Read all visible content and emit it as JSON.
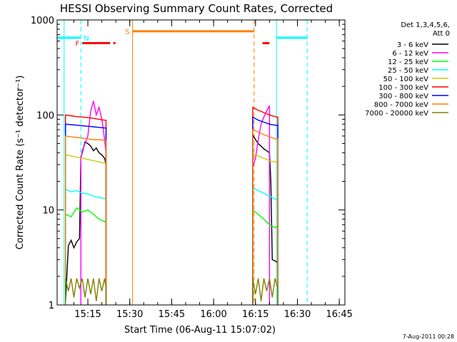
{
  "chart_data": {
    "type": "line",
    "title": "HESSI Observing Summary Count Rates, Corrected",
    "xlabel": "Start Time (06-Aug-11 15:07:02)",
    "ylabel": "Corrected Count Rate (s⁻¹ detector⁻¹)",
    "yscale": "log",
    "ylim": [
      1,
      1000
    ],
    "xlim_minutes": [
      -3.0,
      100.0
    ],
    "x_ticks": [
      {
        "label": "15:15",
        "min": 8
      },
      {
        "label": "15:30",
        "min": 23
      },
      {
        "label": "15:45",
        "min": 38
      },
      {
        "label": "16:00",
        "min": 53
      },
      {
        "label": "16:15",
        "min": 68
      },
      {
        "label": "16:30",
        "min": 83
      },
      {
        "label": "16:45",
        "min": 98
      }
    ],
    "y_ticks": [
      {
        "label": "1",
        "value": 1
      },
      {
        "label": "10",
        "value": 10
      },
      {
        "label": "100",
        "value": 100
      },
      {
        "label": "1000",
        "value": 1000
      }
    ],
    "legend_header": [
      "Det 1,3,4,5,6,",
      "Att 0"
    ],
    "legend_position": "right",
    "series": [
      {
        "name": "3 - 6 keV",
        "color": "#000000",
        "segments": [
          {
            "x": [
              0,
              1,
              2,
              3,
              4,
              5,
              5.5,
              6,
              7,
              8,
              9,
              10,
              11,
              12,
              13,
              14,
              14.5
            ],
            "y": [
              1.05,
              4.2,
              4.8,
              4.0,
              4.6,
              5.0,
              36,
              40,
              52,
              50,
              47,
              42,
              45,
              40,
              38,
              35,
              30
            ]
          },
          {
            "x": [
              67,
              68,
              69,
              70,
              71,
              72,
              73,
              73.5,
              74,
              75,
              76
            ],
            "y": [
              62,
              55,
              50,
              47,
              44,
              42,
              40,
              20,
              3.0,
              2.9,
              2.8
            ]
          }
        ]
      },
      {
        "name": "6 - 12 keV",
        "color": "#ff00ff",
        "segments": [
          {
            "x": [
              5.5,
              6,
              7,
              8,
              9,
              10,
              11,
              12,
              13,
              14,
              14.5
            ],
            "y": [
              34,
              42,
              50,
              60,
              110,
              140,
              100,
              120,
              90,
              55,
              40
            ]
          },
          {
            "x": [
              67,
              68,
              69,
              70,
              71,
              72,
              73
            ],
            "y": [
              28,
              35,
              55,
              80,
              95,
              110,
              125
            ]
          }
        ]
      },
      {
        "name": "12 - 25 keV",
        "color": "#00ff00",
        "segments": [
          {
            "x": [
              0,
              2,
              4,
              6,
              8,
              10,
              12,
              14,
              14.5
            ],
            "y": [
              9.0,
              8.5,
              10.5,
              9.5,
              10.0,
              9.0,
              8.0,
              7.5,
              7.8
            ]
          },
          {
            "x": [
              67,
              69,
              71,
              73,
              75,
              76
            ],
            "y": [
              10,
              9,
              8,
              7,
              6.5,
              6.8
            ]
          }
        ]
      },
      {
        "name": "25 - 50 keV",
        "color": "#00ffff",
        "segments": [
          {
            "x": [
              0,
              2,
              4,
              6,
              8,
              10,
              12,
              14,
              14.5
            ],
            "y": [
              16.5,
              15.5,
              16,
              15,
              14.8,
              14,
              13.5,
              13.2,
              13
            ]
          },
          {
            "x": [
              67,
              69,
              71,
              73,
              75,
              76
            ],
            "y": [
              17,
              16,
              15,
              14,
              13,
              13
            ]
          }
        ]
      },
      {
        "name": "50 - 100 keV",
        "color": "#cccc00",
        "segments": [
          {
            "x": [
              0,
              2,
              4,
              6,
              8,
              10,
              12,
              14,
              14.5
            ],
            "y": [
              38,
              37,
              36,
              35,
              34,
              33,
              32,
              31,
              31
            ]
          },
          {
            "x": [
              67,
              69,
              71,
              73,
              75,
              76
            ],
            "y": [
              38,
              37,
              35,
              33,
              32,
              32
            ]
          }
        ]
      },
      {
        "name": "100 - 300 keV",
        "color": "#ff0000",
        "segments": [
          {
            "x": [
              0,
              2,
              4,
              6,
              8,
              10,
              12,
              14,
              14.5
            ],
            "y": [
              100,
              98,
              96,
              95,
              94,
              92,
              90,
              88,
              88
            ]
          },
          {
            "x": [
              67,
              69,
              71,
              73,
              75,
              76
            ],
            "y": [
              120,
              112,
              106,
              100,
              96,
              95
            ]
          }
        ]
      },
      {
        "name": "300 - 800 keV",
        "color": "#0000ff",
        "segments": [
          {
            "x": [
              0,
              2,
              4,
              6,
              8,
              10,
              12,
              14,
              14.5
            ],
            "y": [
              80,
              79,
              78,
              77,
              76,
              75,
              74,
              73,
              73
            ]
          },
          {
            "x": [
              67,
              69,
              71,
              73,
              75,
              76
            ],
            "y": [
              95,
              88,
              84,
              80,
              78,
              78
            ]
          }
        ]
      },
      {
        "name": "800 - 7000 keV",
        "color": "#ff8000",
        "segments": [
          {
            "x": [
              0,
              2,
              4,
              6,
              8,
              10,
              12,
              14,
              14.5
            ],
            "y": [
              60,
              59,
              58,
              57,
              56,
              55,
              55,
              54,
              54
            ]
          },
          {
            "x": [
              67,
              69,
              71,
              73,
              75,
              76
            ],
            "y": [
              70,
              66,
              62,
              59,
              56,
              56
            ]
          }
        ]
      },
      {
        "name": "7000 - 20000 keV",
        "color": "#808000",
        "segments": [
          {
            "x": [
              0,
              1,
              2,
              3,
              4,
              5,
              6,
              7,
              8,
              9,
              10,
              11,
              12,
              13,
              14,
              14.5
            ],
            "y": [
              1.9,
              1.4,
              1.9,
              1.2,
              1.9,
              1.5,
              1.9,
              1.2,
              1.9,
              1.3,
              1.9,
              1.1,
              1.9,
              1.4,
              1.9,
              1.5
            ]
          },
          {
            "x": [
              67,
              68,
              69,
              70,
              71,
              72,
              73,
              74,
              75,
              76
            ],
            "y": [
              1.9,
              1.3,
              1.9,
              1.1,
              1.9,
              1.4,
              1.9,
              1.2,
              1.9,
              1.5
            ]
          }
        ]
      }
    ],
    "annotations": {
      "night": {
        "label": "N",
        "color": "#00ffff",
        "y": 650,
        "bars": [
          [
            -3,
            5.5
          ],
          [
            75.5,
            86.5
          ]
        ],
        "lines_solid": [
          -0.5,
          75.5
        ],
        "lines_dashed": [
          5.5,
          86.5
        ]
      },
      "flare": {
        "label": "F",
        "color": "#ff0000",
        "y": 570,
        "bars": [
          [
            6,
            16
          ],
          [
            70.5,
            73
          ]
        ],
        "dots": [
          17.5
        ]
      },
      "saa": {
        "label": "S",
        "color": "#ff8000",
        "y": 760,
        "bars": [
          [
            24,
            67.5
          ]
        ],
        "lines_solid": [
          24
        ],
        "lines_dashed": [
          67.5
        ]
      }
    }
  },
  "footer_date": "7-Aug-2011 00:28"
}
